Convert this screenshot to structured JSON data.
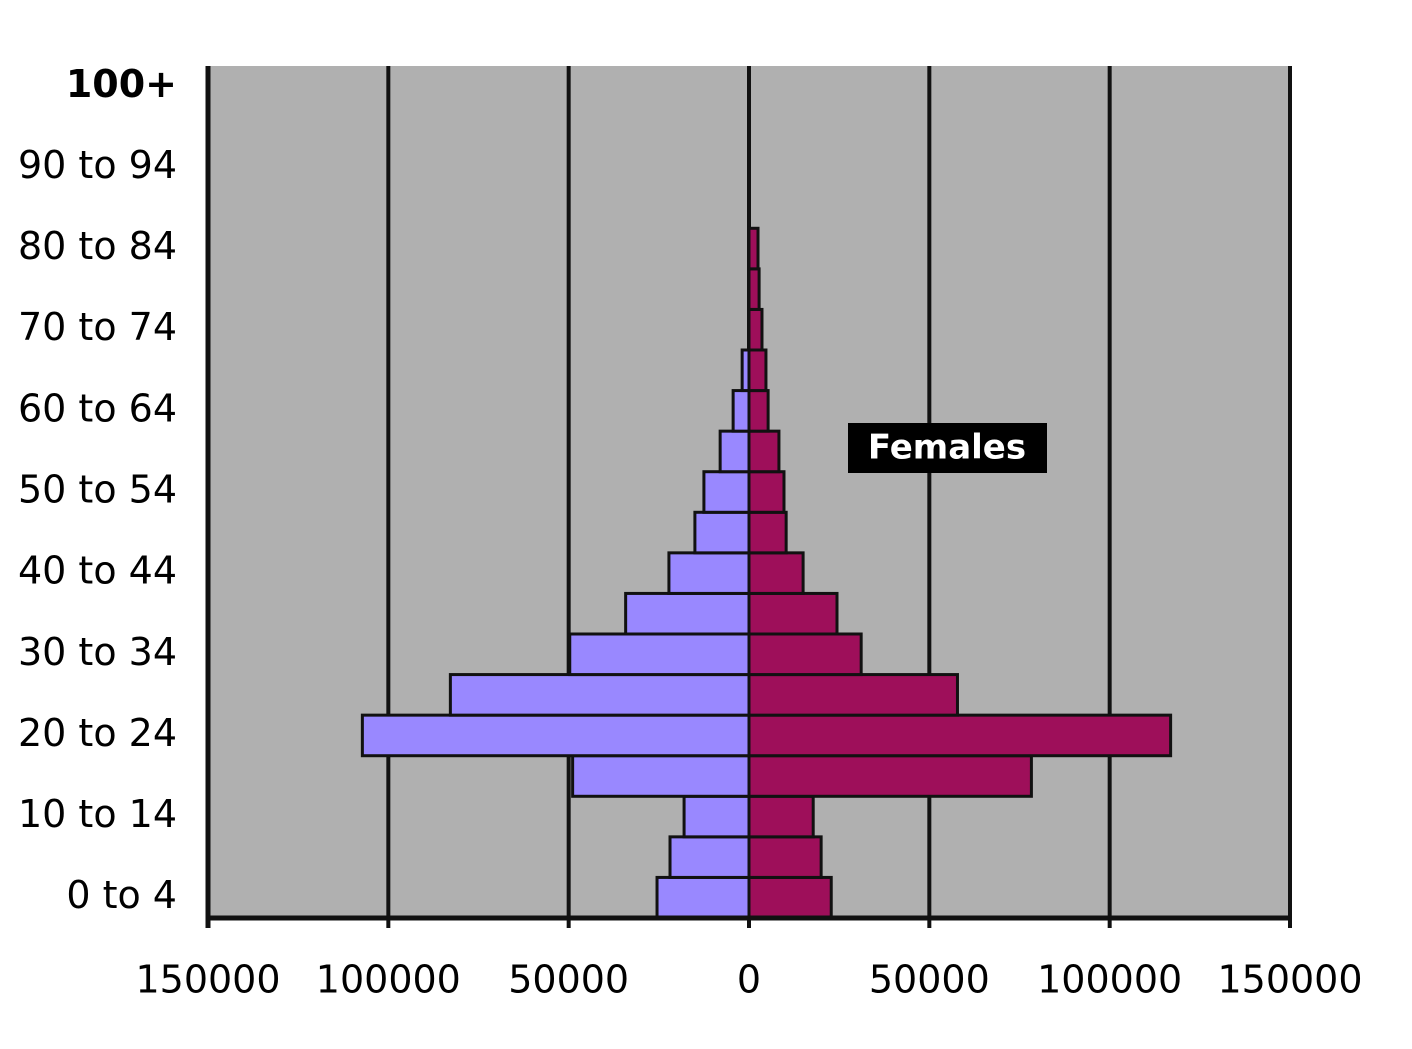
{
  "chart_data": {
    "type": "bar",
    "orientation": "horizontal",
    "categories": [
      "0 to 4",
      null,
      "10 to 14",
      null,
      "20 to 24",
      null,
      "30 to 34",
      null,
      "40 to 44",
      null,
      "50 to 54",
      null,
      "60 to 64",
      null,
      "70 to 74",
      null,
      "80 to 84",
      null,
      "90 to 94",
      null,
      "100+"
    ],
    "series": [
      {
        "color": "#9988ff",
        "values": [
          -25500,
          -21900,
          -18000,
          -48900,
          -107200,
          -82800,
          -49700,
          -34200,
          -22200,
          -15000,
          -12500,
          -8000,
          -4400,
          -1900,
          0,
          0,
          0,
          0,
          0,
          0,
          0
        ]
      },
      {
        "name": "Females",
        "color": "#9e0f5a",
        "values": [
          22800,
          20000,
          17800,
          78300,
          116900,
          57800,
          31100,
          24400,
          15000,
          10300,
          9700,
          8300,
          5300,
          4700,
          3600,
          2800,
          2500,
          0,
          0,
          0,
          0
        ]
      }
    ],
    "xlim": [
      -150000,
      150000
    ],
    "xticks": [
      {
        "value": -150000,
        "label": "150000"
      },
      {
        "value": -100000,
        "label": "100000"
      },
      {
        "value": -50000,
        "label": "50000"
      },
      0,
      50000,
      100000,
      150000
    ],
    "grid": true
  }
}
